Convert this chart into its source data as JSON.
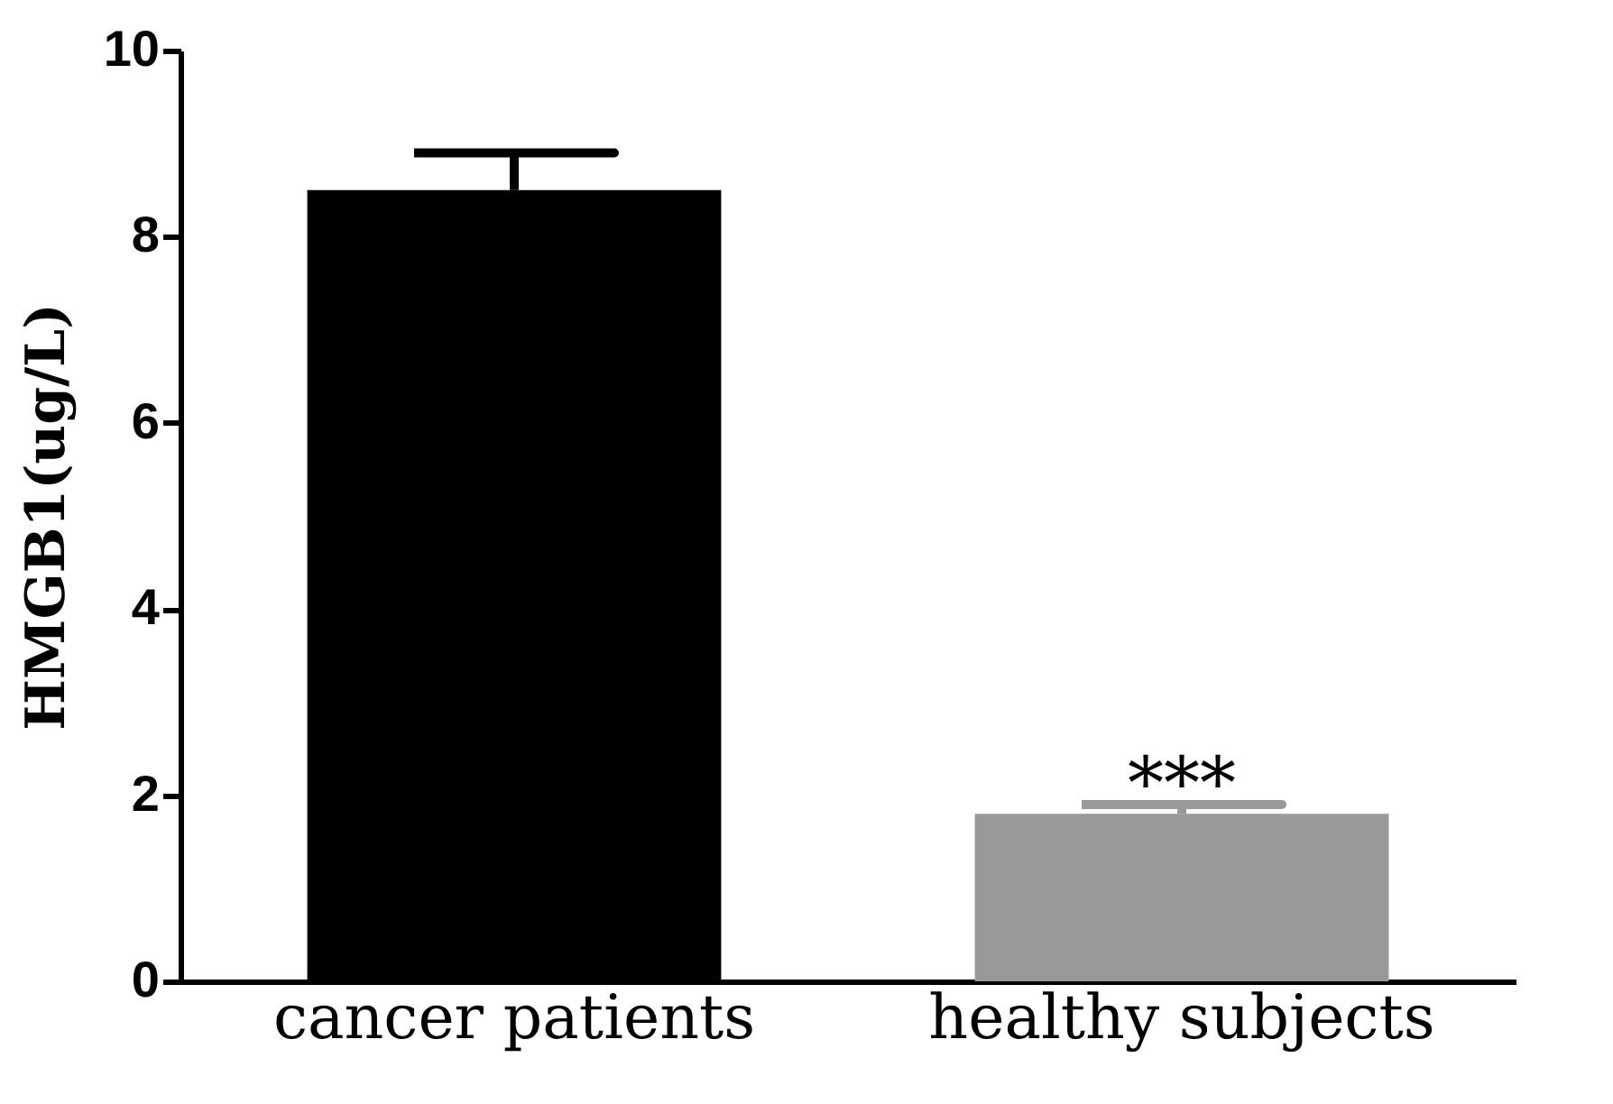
{
  "chart_data": {
    "type": "bar",
    "ylabel": "HMGB1(ug/L)",
    "categories": [
      "cancer patients",
      "healthy subjects"
    ],
    "values": [
      8.5,
      1.8
    ],
    "colors": [
      "#000000",
      "#999999"
    ],
    "errors": [
      [
        8.5,
        8.9
      ],
      [
        1.8,
        1.9
      ]
    ],
    "ylim": [
      0,
      10
    ],
    "yticks": [
      0,
      2,
      4,
      6,
      8,
      10
    ],
    "grid": false,
    "annotations": [
      "***"
    ]
  }
}
